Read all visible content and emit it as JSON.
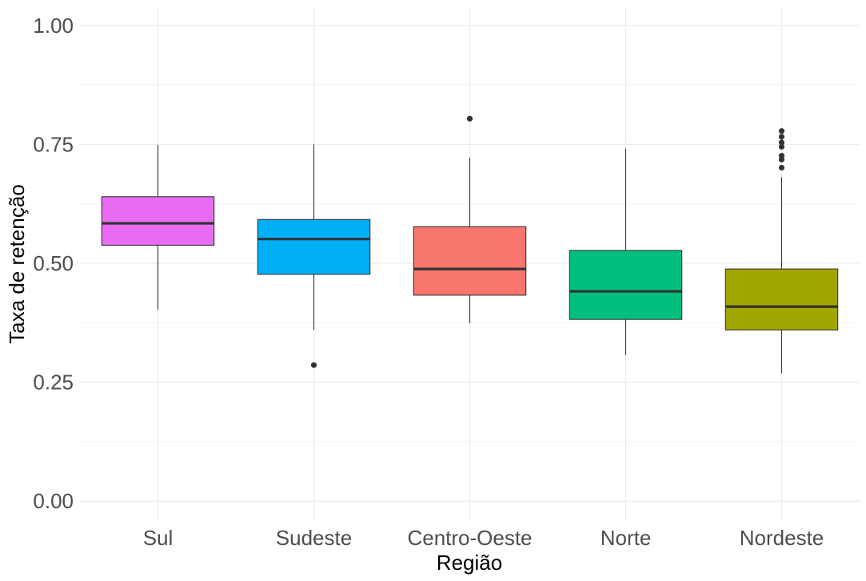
{
  "chart_data": {
    "type": "boxplot",
    "xlabel": "Região",
    "ylabel": "Taxa de retenção",
    "ylim": [
      -0.04,
      1.04
    ],
    "yticks": [
      0.0,
      0.25,
      0.5,
      0.75,
      1.0
    ],
    "ytick_labels": [
      "0.00",
      "0.25",
      "0.50",
      "0.75",
      "1.00"
    ],
    "grid": true,
    "legend": "none",
    "categories": [
      "Sul",
      "Sudeste",
      "Centro-Oeste",
      "Norte",
      "Nordeste"
    ],
    "boxes": [
      {
        "category": "Sul",
        "color": "#e76bf3",
        "min": 0.402,
        "q1": 0.538,
        "median": 0.584,
        "q3": 0.64,
        "max": 0.749,
        "outliers": []
      },
      {
        "category": "Sudeste",
        "color": "#00b0f6",
        "min": 0.36,
        "q1": 0.477,
        "median": 0.551,
        "q3": 0.592,
        "max": 0.75,
        "outliers": [
          0.286
        ]
      },
      {
        "category": "Centro-Oeste",
        "color": "#f8766d",
        "min": 0.374,
        "q1": 0.433,
        "median": 0.488,
        "q3": 0.577,
        "max": 0.722,
        "outliers": [
          0.804
        ]
      },
      {
        "category": "Norte",
        "color": "#00bf7d",
        "min": 0.307,
        "q1": 0.382,
        "median": 0.441,
        "q3": 0.527,
        "max": 0.741,
        "outliers": []
      },
      {
        "category": "Nordeste",
        "color": "#a3a500",
        "min": 0.269,
        "q1": 0.36,
        "median": 0.409,
        "q3": 0.488,
        "max": 0.681,
        "outliers": [
          0.701,
          0.718,
          0.726,
          0.745,
          0.754,
          0.766,
          0.778
        ]
      }
    ]
  }
}
